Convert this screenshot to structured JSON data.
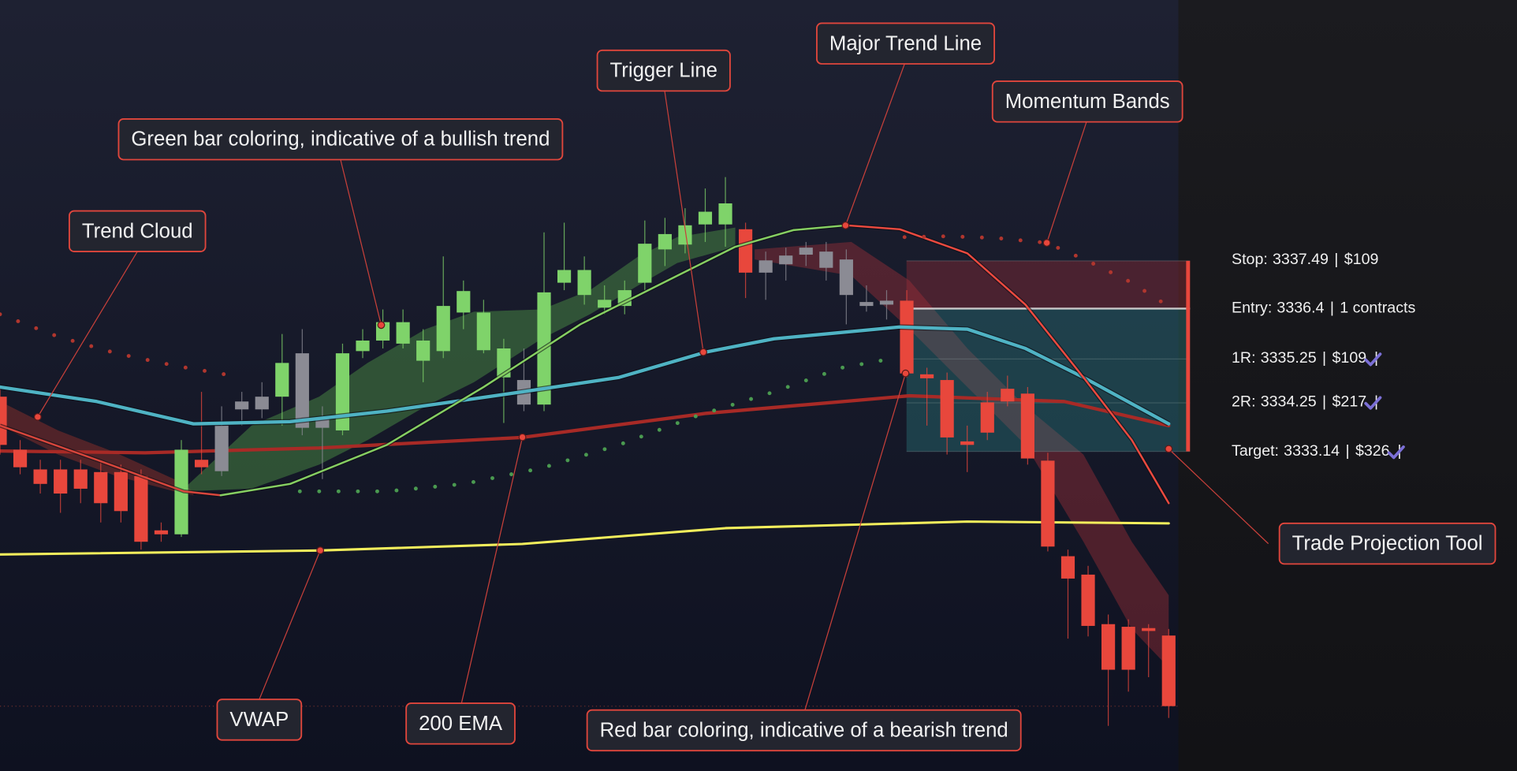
{
  "chart_data": {
    "type": "candlestick",
    "xlim": [
      0,
      58
    ],
    "ylim": [
      3325.85,
      3343.44
    ],
    "palette": {
      "up": "#7fd36a",
      "down": "#e8473c",
      "neutral": "#8b8b94"
    },
    "candles": {
      "open": [
        3334.39,
        3333.18,
        3332.73,
        3332.73,
        3332.73,
        3332.67,
        3332.67,
        3332.58,
        3331.34,
        3331.25,
        3332.95,
        3333.73,
        3334.28,
        3334.39,
        3334.39,
        3335.38,
        3333.9,
        3333.62,
        3335.43,
        3335.67,
        3335.6,
        3335.21,
        3335.43,
        3336.31,
        3335.45,
        3334.83,
        3334.77,
        3334.21,
        3336.99,
        3336.71,
        3336.42,
        3336.46,
        3336.99,
        3337.75,
        3337.86,
        3338.32,
        3338.32,
        3338.21,
        3337.5,
        3337.61,
        3337.79,
        3337.7,
        3337.52,
        3336.55,
        3336.58,
        3336.58,
        3334.9,
        3334.77,
        3333.37,
        3334.26,
        3334.57,
        3334.46,
        3332.93,
        3330.75,
        3330.33,
        3329.2,
        3329.14,
        3329.11,
        3328.94
      ],
      "high": [
        3334.61,
        3333.4,
        3332.95,
        3332.95,
        3332.95,
        3332.89,
        3332.84,
        3332.73,
        3331.52,
        3333.4,
        3334.5,
        3334.17,
        3334.5,
        3334.72,
        3335.82,
        3335.93,
        3334.17,
        3335.6,
        3335.93,
        3336.38,
        3336.38,
        3335.93,
        3337.59,
        3337.04,
        3336.6,
        3335.71,
        3335.49,
        3338.14,
        3338.36,
        3337.59,
        3336.93,
        3337.04,
        3338.41,
        3338.47,
        3338.69,
        3339.14,
        3339.4,
        3338.36,
        3337.7,
        3337.79,
        3337.92,
        3337.92,
        3337.75,
        3336.93,
        3336.82,
        3336.82,
        3335.05,
        3334.94,
        3333.73,
        3334.5,
        3334.87,
        3334.61,
        3333.11,
        3330.9,
        3330.53,
        3329.42,
        3329.31,
        3329.2,
        3329.09
      ],
      "low": [
        3333.07,
        3332.62,
        3332.18,
        3331.74,
        3331.96,
        3331.52,
        3331.52,
        3330.9,
        3331.08,
        3331.19,
        3332.62,
        3332.58,
        3333.73,
        3333.9,
        3333.73,
        3333.51,
        3332.51,
        3333.51,
        3335.27,
        3335.49,
        3335.49,
        3334.72,
        3335.27,
        3335.93,
        3335.38,
        3333.79,
        3334.06,
        3334.06,
        3336.82,
        3336.49,
        3336.27,
        3336.27,
        3336.82,
        3337.37,
        3337.66,
        3337.92,
        3337.81,
        3336.64,
        3336.6,
        3337.04,
        3337.37,
        3337.04,
        3336.04,
        3336.33,
        3336.15,
        3334.83,
        3333.73,
        3333.07,
        3332.67,
        3333.4,
        3334.17,
        3332.84,
        3330.86,
        3328.87,
        3328.92,
        3326.88,
        3327.66,
        3327.99,
        3327.06
      ],
      "close": [
        3333.29,
        3332.78,
        3332.4,
        3332.18,
        3332.29,
        3331.96,
        3331.78,
        3331.08,
        3331.25,
        3333.18,
        3332.78,
        3332.69,
        3334.1,
        3334.1,
        3335.16,
        3333.68,
        3333.68,
        3335.38,
        3335.67,
        3336.09,
        3336.09,
        3335.67,
        3336.46,
        3336.8,
        3336.31,
        3335.49,
        3334.21,
        3336.77,
        3337.28,
        3337.28,
        3336.6,
        3336.82,
        3337.88,
        3338.1,
        3338.3,
        3338.61,
        3338.8,
        3337.22,
        3337.22,
        3337.41,
        3337.63,
        3337.33,
        3336.71,
        3336.46,
        3336.49,
        3334.92,
        3334.81,
        3333.46,
        3333.29,
        3333.57,
        3334.28,
        3332.98,
        3330.97,
        3330.24,
        3329.16,
        3328.16,
        3328.16,
        3329.05,
        3327.33
      ],
      "coloring": [
        "down",
        "down",
        "down",
        "down",
        "down",
        "down",
        "down",
        "down",
        "down",
        "up",
        "down",
        "neutral",
        "neutral",
        "neutral",
        "up",
        "neutral",
        "neutral",
        "up",
        "up",
        "up",
        "up",
        "up",
        "up",
        "up",
        "up",
        "up",
        "neutral",
        "up",
        "up",
        "up",
        "up",
        "up",
        "up",
        "up",
        "up",
        "up",
        "up",
        "down",
        "neutral",
        "neutral",
        "neutral",
        "neutral",
        "neutral",
        "neutral",
        "neutral",
        "down",
        "down",
        "down",
        "down",
        "down",
        "down",
        "down",
        "down",
        "down",
        "down",
        "down",
        "down",
        "down",
        "down"
      ]
    },
    "clouds": [
      {
        "color": "#c0392b",
        "opacity": 0.35,
        "x": [
          0,
          2.88,
          5.76,
          8.64,
          9.6
        ],
        "upper": [
          3334.28,
          3333.62,
          3333.11,
          3332.51,
          3332.23
        ],
        "lower": [
          3333.73,
          3333.07,
          3332.58,
          3332.23,
          3332.14
        ]
      },
      {
        "color": "#4f9a48",
        "opacity": 0.45,
        "x": [
          9.12,
          12.48,
          15.84,
          18.24,
          21.12,
          23.52,
          26.88,
          29.28,
          31.68,
          33.61,
          36.49
        ],
        "upper": [
          3332.29,
          3333.73,
          3334.39,
          3335.16,
          3335.93,
          3336.33,
          3336.38,
          3336.82,
          3337.59,
          3338.03,
          3338.25
        ],
        "lower": [
          3332.23,
          3332.29,
          3332.84,
          3333.4,
          3334.17,
          3334.72,
          3335.71,
          3336.27,
          3336.93,
          3337.44,
          3337.81
        ]
      },
      {
        "color": "#b0323a",
        "opacity": 0.38,
        "x": [
          37.45,
          42.25,
          45.13,
          48.01,
          50.89,
          53.77,
          56.17,
          58
        ],
        "upper": [
          3337.75,
          3337.92,
          3337.04,
          3335.49,
          3334.17,
          3333.07,
          3331.08,
          3329.86
        ],
        "lower": [
          3337.52,
          3337.15,
          3335.93,
          3334.61,
          3333.29,
          3331.08,
          3329.09,
          3328.21
        ]
      }
    ],
    "lines": [
      {
        "color": "#a82a26",
        "width": 3.5,
        "style": "solid",
        "x": [
          0,
          7.2,
          15.84,
          25.92,
          35.05,
          45.13,
          52.81,
          58
        ],
        "values": [
          3333.15,
          3333.11,
          3333.22,
          3333.46,
          3334.01,
          3334.41,
          3334.28,
          3333.73
        ]
      },
      {
        "color": "#f3ee5c",
        "width": 2.5,
        "style": "solid",
        "x": [
          0,
          15.84,
          25.92,
          36.0,
          48.0,
          58
        ],
        "values": [
          3330.79,
          3330.88,
          3331.03,
          3331.39,
          3331.54,
          3331.5
        ]
      },
      {
        "color": "#4fb3c4",
        "width": 3.5,
        "style": "solid",
        "x": [
          0,
          4.8,
          9.6,
          14.4,
          19.2,
          25.92,
          30.72,
          35.05,
          38.41,
          44.65,
          48.01,
          50.89,
          53.77,
          58
        ],
        "values": [
          3334.61,
          3334.28,
          3333.77,
          3333.82,
          3334.06,
          3334.5,
          3334.83,
          3335.41,
          3335.71,
          3335.98,
          3335.93,
          3335.49,
          3334.83,
          3333.77
        ]
      },
      {
        "color": "#d8463c",
        "width": 2,
        "style": "solid",
        "x": [
          0,
          4.8,
          9.12,
          10.95
        ],
        "values": [
          3333.73,
          3332.95,
          3332.23,
          3332.14
        ]
      },
      {
        "color": "#86cf62",
        "width": 2,
        "style": "solid",
        "x": [
          10.95,
          14.4,
          19.2,
          24.0,
          28.8,
          33.61,
          36.49,
          39.37,
          42.01
        ],
        "values": [
          3332.14,
          3332.4,
          3333.29,
          3334.61,
          3336.04,
          3337.15,
          3337.81,
          3338.19,
          3338.3
        ]
      },
      {
        "color": "#ec4a3f",
        "width": 2,
        "style": "solid",
        "x": [
          42.01,
          44.65,
          48.01,
          50.89,
          53.77,
          56.17,
          58
        ],
        "values": [
          3338.3,
          3338.21,
          3337.66,
          3336.49,
          3334.83,
          3333.4,
          3331.96
        ]
      },
      {
        "color": "#b0362e",
        "width": 4,
        "style": "dotted",
        "x": [
          0,
          2.88,
          5.76,
          8.64,
          11.52
        ],
        "values": [
          3336.27,
          3335.76,
          3335.38,
          3335.1,
          3334.87
        ]
      },
      {
        "color": "#b0362e",
        "width": 4,
        "style": "dotted",
        "x": [
          44.89,
          47.05,
          49.45,
          51.94,
          54.01,
          56.17,
          58.09
        ],
        "values": [
          3338.03,
          3338.05,
          3338.01,
          3337.9,
          3337.48,
          3336.99,
          3336.42
        ]
      },
      {
        "color": "#4a9a50",
        "width": 4,
        "style": "dotted",
        "x": [
          14.88,
          19.2,
          23.04,
          26.88,
          30.72,
          34.57,
          38.41,
          41.77,
          43.93
        ],
        "values": [
          3332.23,
          3332.23,
          3332.4,
          3332.76,
          3333.29,
          3333.95,
          3334.5,
          3335.05,
          3335.23
        ]
      }
    ],
    "trade": {
      "separator": "|",
      "stop_zone": "#a8323a",
      "target_zone": "#2f8a8a",
      "check_color": "#7b6fd6",
      "rows": [
        {
          "label": "Stop:",
          "price": 3337.49,
          "amount": "$109",
          "checked": false
        },
        {
          "label": "Entry:",
          "price": 3336.4,
          "amount": "1 contracts",
          "checked": false
        },
        {
          "label": "1R:",
          "price": 3335.25,
          "amount": "$109",
          "checked": true
        },
        {
          "label": "2R:",
          "price": 3334.25,
          "amount": "$217",
          "checked": true
        },
        {
          "label": "Target:",
          "price": 3333.14,
          "amount": "$326",
          "checked": true
        }
      ]
    }
  },
  "annotations": [
    {
      "text": "Trend Cloud"
    },
    {
      "text": "Green bar coloring, indicative of a bullish trend"
    },
    {
      "text": "Trigger Line"
    },
    {
      "text": "Major Trend Line"
    },
    {
      "text": "Momentum Bands"
    },
    {
      "text": "Trade Projection Tool"
    },
    {
      "text": "VWAP"
    },
    {
      "text": "200 EMA"
    },
    {
      "text": "Red bar coloring, indicative of a bearish trend"
    }
  ]
}
